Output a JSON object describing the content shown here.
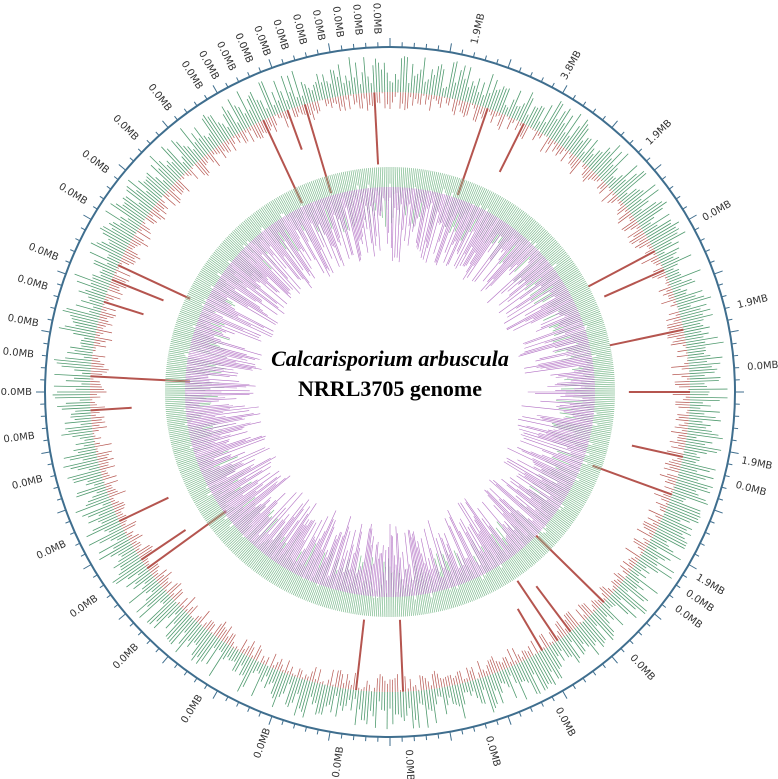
{
  "title": {
    "species": "Calcarisporium arbuscula",
    "strain": "NRRL3705 genome"
  },
  "scale_labels": [
    "1.9MB",
    "3.8MB",
    "1.9MB",
    "0.0MB",
    "1.9MB",
    "0.0MB",
    "1.9MB",
    "0.0MB",
    "1.9MB",
    "0.0MB",
    "0.0MB",
    "0.0MB",
    "0.0MB",
    "0.0MB",
    "0.0MB",
    "0.0MB",
    "0.0MB",
    "0.0MB",
    "0.0MB",
    "0.0MB",
    "0.0MB",
    "0.0MB",
    "0.0MB",
    "0.0MB",
    "0.0MB",
    "0.0MB",
    "0.0MB",
    "0.0MB",
    "0.0MB",
    "0.0MB",
    "0.0MB",
    "0.0MB",
    "0.0MB",
    "0.0MB",
    "0.0MB",
    "0.0MB",
    "0.0MB",
    "0.0MB",
    "0.0MB",
    "0.0MB",
    "0.0MB",
    "0.0MB",
    "0.0MB"
  ]
}
